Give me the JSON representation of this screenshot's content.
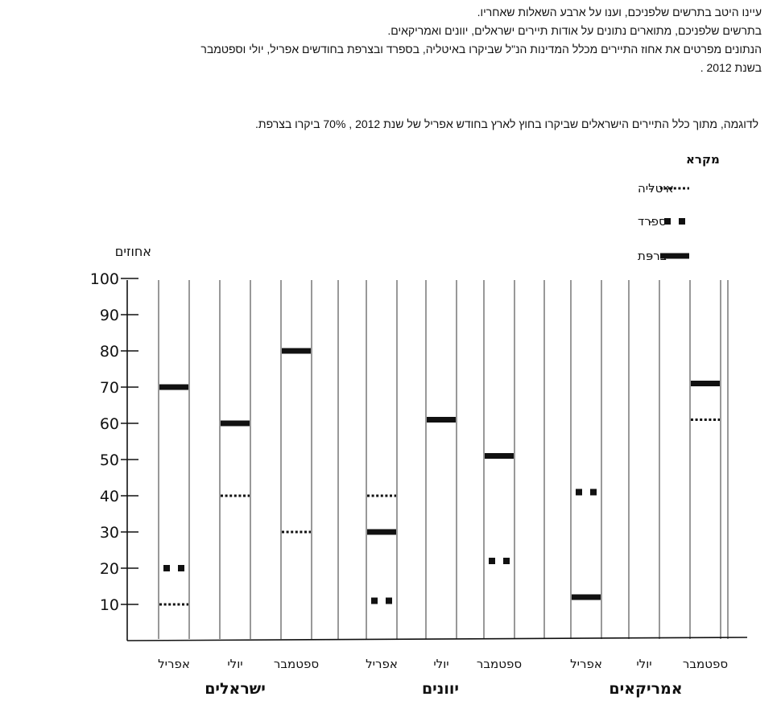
{
  "intro": {
    "line1": "עיינו היטב בתרשים שלפניכם, וענו על ארבע השאלות שאחריו.",
    "line2": "בתרשים שלפניכם, מתוארים נתונים על אודות תיירים ישראלים, יוונים ואמריקאים.",
    "line3": "הנתונים מפרטים את אחוז התיירים מכלל המדינות הנ\"ל שביקרו באיטליה, בספרד ובצרפת בחודשים אפריל, יולי וספטמבר",
    "line4": "בשנת 2012 ."
  },
  "example": "לדוגמה, מתוך כלל התיירים הישראלים שביקרו בחוץ לארץ בחודש אפריל של שנת 2012 , 70% ביקרו בצרפת.",
  "chart_data": {
    "type": "scatter",
    "ylabel": "אחוזים",
    "ylim": [
      0,
      100
    ],
    "yticks": [
      10,
      20,
      30,
      40,
      50,
      60,
      70,
      80,
      90,
      100
    ],
    "legend": {
      "title": "מקרא",
      "placement": "top-right",
      "entries": [
        {
          "key": "italy",
          "label": "איטליה",
          "dash": "-"
        },
        {
          "key": "spain",
          "label": "ספרד",
          "dash": "-"
        },
        {
          "key": "france",
          "label": "צרפת",
          "dash": "-"
        }
      ]
    },
    "groups": [
      {
        "name": "ישראלים",
        "months": [
          "אפריל",
          "יולי",
          "ספטמבר"
        ]
      },
      {
        "name": "יוונים",
        "months": [
          "אפריל",
          "יולי",
          "ספטמבר"
        ]
      },
      {
        "name": "אמריקאים",
        "months": [
          "אפריל",
          "יולי",
          "ספטמבר"
        ]
      }
    ],
    "series": [
      {
        "name": "איטליה",
        "key": "italy",
        "values": [
          10,
          40,
          30,
          40,
          null,
          null,
          null,
          null,
          61
        ]
      },
      {
        "name": "ספרד",
        "key": "spain",
        "values": [
          20,
          null,
          null,
          11,
          null,
          22,
          41,
          null,
          null
        ]
      },
      {
        "name": "צרפת",
        "key": "france",
        "values": [
          70,
          60,
          80,
          30,
          61,
          51,
          12,
          null,
          71
        ]
      }
    ],
    "colors": {
      "ink": "#111111",
      "grid": "#333333"
    }
  }
}
